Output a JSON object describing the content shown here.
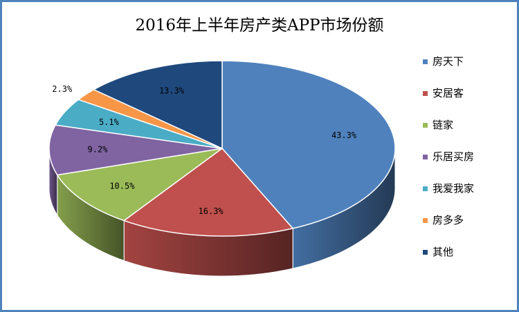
{
  "chart_data": {
    "type": "pie",
    "title": "2016年上半年房产类APP市场份额",
    "categories": [
      "房天下",
      "安居客",
      "链家",
      "乐居买房",
      "我爱我家",
      "房多多",
      "其他"
    ],
    "values": [
      43.3,
      16.3,
      10.5,
      9.2,
      5.1,
      2.3,
      13.3
    ],
    "labels": [
      "43.3%",
      "16.3%",
      "10.5%",
      "9.2%",
      "5.1%",
      "2.3%",
      "13.3%"
    ],
    "colors": [
      "#4f81bd",
      "#c0504d",
      "#9bbb59",
      "#8064a2",
      "#4bacc6",
      "#f79646",
      "#1f497d"
    ],
    "legend_position": "right",
    "style": "3d"
  }
}
